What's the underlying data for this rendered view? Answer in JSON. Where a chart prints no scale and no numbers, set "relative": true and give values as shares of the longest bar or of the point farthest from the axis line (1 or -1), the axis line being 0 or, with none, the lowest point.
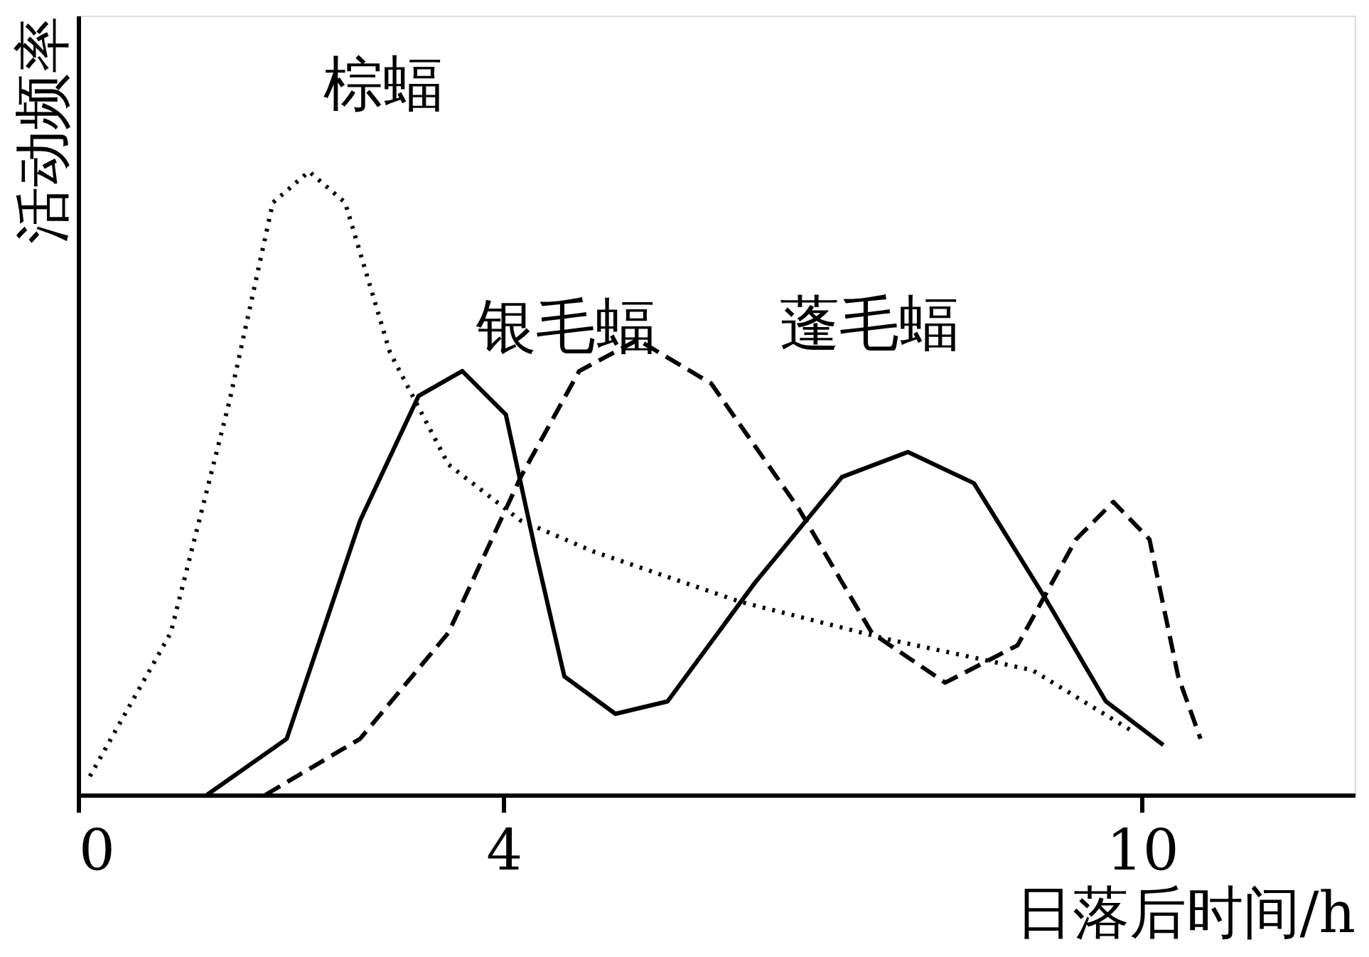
{
  "chart_data": {
    "type": "line",
    "relative": true,
    "xlabel": "日落后时间/h",
    "ylabel": "活动频率",
    "xlim": [
      0,
      12
    ],
    "xticks": [
      0,
      4,
      10
    ],
    "grid": false,
    "marker": "none",
    "series": [
      {
        "name": "棕蝠",
        "color": "#000000",
        "line_style": "dotted",
        "x": [
          0.11,
          0.87,
          1.42,
          1.83,
          2.17,
          2.51,
          2.93,
          3.48,
          4.16,
          4.85,
          6.22,
          7.6,
          8.97,
          9.93
        ],
        "values": [
          0.03,
          0.26,
          0.63,
          0.95,
          1.0,
          0.95,
          0.71,
          0.53,
          0.44,
          0.39,
          0.31,
          0.25,
          0.2,
          0.1
        ]
      },
      {
        "name": "银毛蝠",
        "color": "#000000",
        "line_style": "solid",
        "x": [
          1.21,
          1.96,
          2.65,
          3.2,
          3.61,
          4.02,
          4.3,
          4.57,
          5.05,
          5.54,
          6.36,
          7.18,
          7.8,
          8.42,
          9.11,
          9.66,
          10.2
        ],
        "values": [
          0,
          0.09,
          0.44,
          0.64,
          0.68,
          0.61,
          0.39,
          0.19,
          0.13,
          0.15,
          0.34,
          0.51,
          0.55,
          0.5,
          0.31,
          0.15,
          0.08
        ]
      },
      {
        "name": "蓬毛蝠",
        "color": "#000000",
        "line_style": "dashed",
        "x": [
          1.76,
          2.65,
          3.48,
          4.16,
          4.71,
          5.26,
          5.95,
          6.77,
          7.46,
          8.15,
          8.83,
          9.38,
          9.73,
          10.07,
          10.34,
          10.55
        ],
        "values": [
          0,
          0.09,
          0.26,
          0.51,
          0.68,
          0.73,
          0.66,
          0.46,
          0.26,
          0.18,
          0.24,
          0.41,
          0.47,
          0.41,
          0.19,
          0.09
        ]
      }
    ]
  }
}
